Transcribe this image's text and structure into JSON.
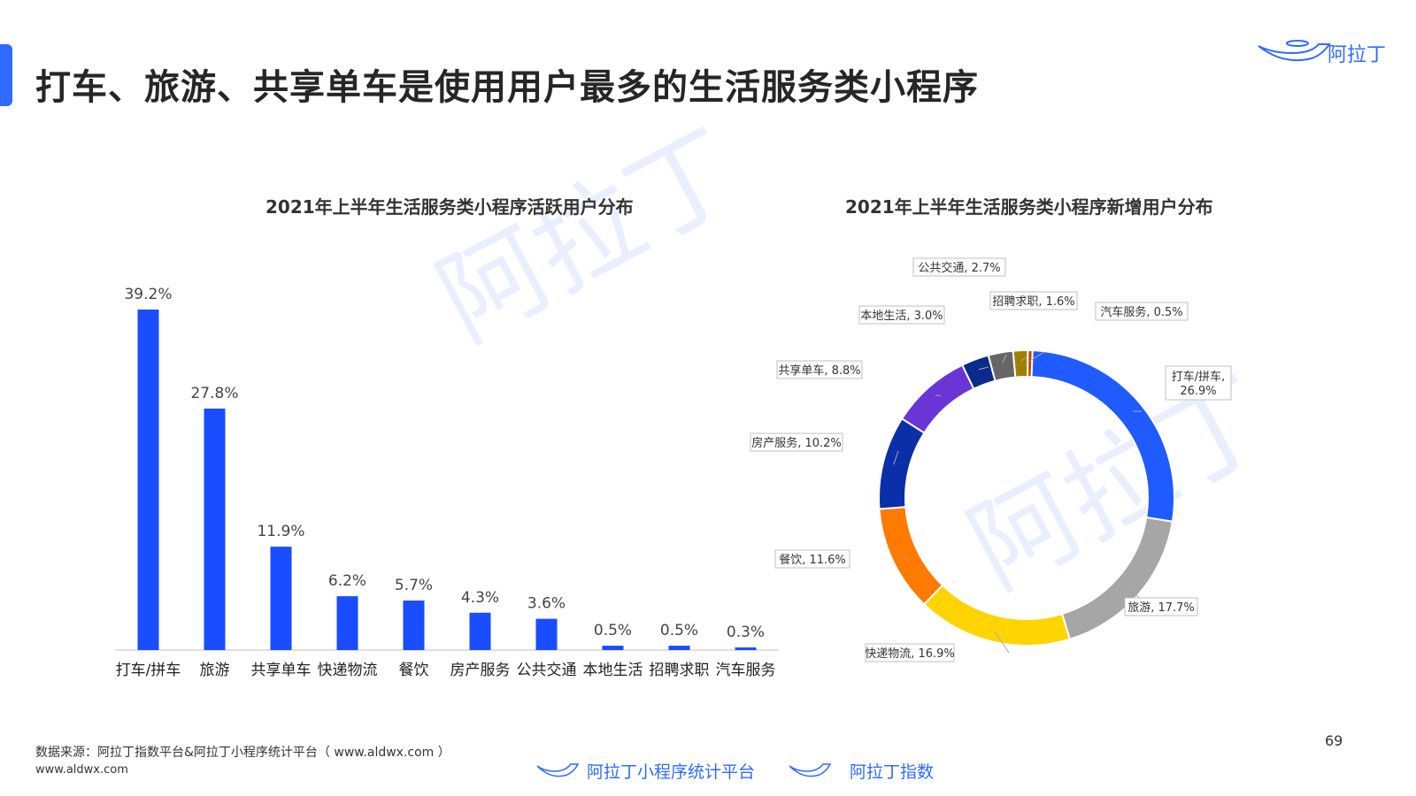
{
  "header": {
    "title": "打车、旅游、共享单车是使用用户最多的生活服务类小程序",
    "brand": "阿拉丁"
  },
  "chart_data": [
    {
      "type": "bar",
      "title": "2021年上半年生活服务类小程序活跃用户分布",
      "categories": [
        "打车/拼车",
        "旅游",
        "共享单车",
        "快递物流",
        "餐饮",
        "房产服务",
        "公共交通",
        "本地生活",
        "招聘求职",
        "汽车服务"
      ],
      "values": [
        39.2,
        27.8,
        11.9,
        6.2,
        5.7,
        4.3,
        3.6,
        0.5,
        0.5,
        0.3
      ],
      "value_labels": [
        "39.2%",
        "27.8%",
        "11.9%",
        "6.2%",
        "5.7%",
        "4.3%",
        "3.6%",
        "0.5%",
        "0.5%",
        "0.3%"
      ],
      "unit": "%",
      "ylim": [
        0,
        40
      ],
      "color": "#1a4dff",
      "grid": false
    },
    {
      "type": "pie",
      "title": "2021年上半年生活服务类小程序新增用户分布",
      "donut": true,
      "slices": [
        {
          "label": "打车/拼车,",
          "label2": "26.9%",
          "value": 26.9,
          "color": "#1f5bff"
        },
        {
          "label": "旅游, 17.7%",
          "value": 17.7,
          "color": "#a6a6a6"
        },
        {
          "label": "快递物流, 16.9%",
          "value": 16.9,
          "color": "#ffd400"
        },
        {
          "label": "餐饮, 11.6%",
          "value": 11.6,
          "color": "#ff7a00"
        },
        {
          "label": "房产服务, 10.2%",
          "value": 10.2,
          "color": "#0b2fa8"
        },
        {
          "label": "共享单车, 8.8%",
          "value": 8.8,
          "color": "#6a35d6"
        },
        {
          "label": "本地生活, 3.0%",
          "value": 3.0,
          "color": "#0a2a8c"
        },
        {
          "label": "公共交通, 2.7%",
          "value": 2.7,
          "color": "#666666"
        },
        {
          "label": "招聘求职, 1.6%",
          "value": 1.6,
          "color": "#a08000"
        },
        {
          "label": "汽车服务, 0.5%",
          "value": 0.5,
          "color": "#c04000"
        }
      ]
    }
  ],
  "footer": {
    "source": "数据来源：阿拉丁指数平台&阿拉丁小程序统计平台（ www.aldwx.com ）",
    "site": "www.aldwx.com",
    "page_number": "69",
    "logo1": "阿拉丁小程序统计平台",
    "logo2": "阿拉丁指数"
  },
  "theme": {
    "accent": "#2f6bff",
    "watermark_text": "阿拉丁"
  }
}
